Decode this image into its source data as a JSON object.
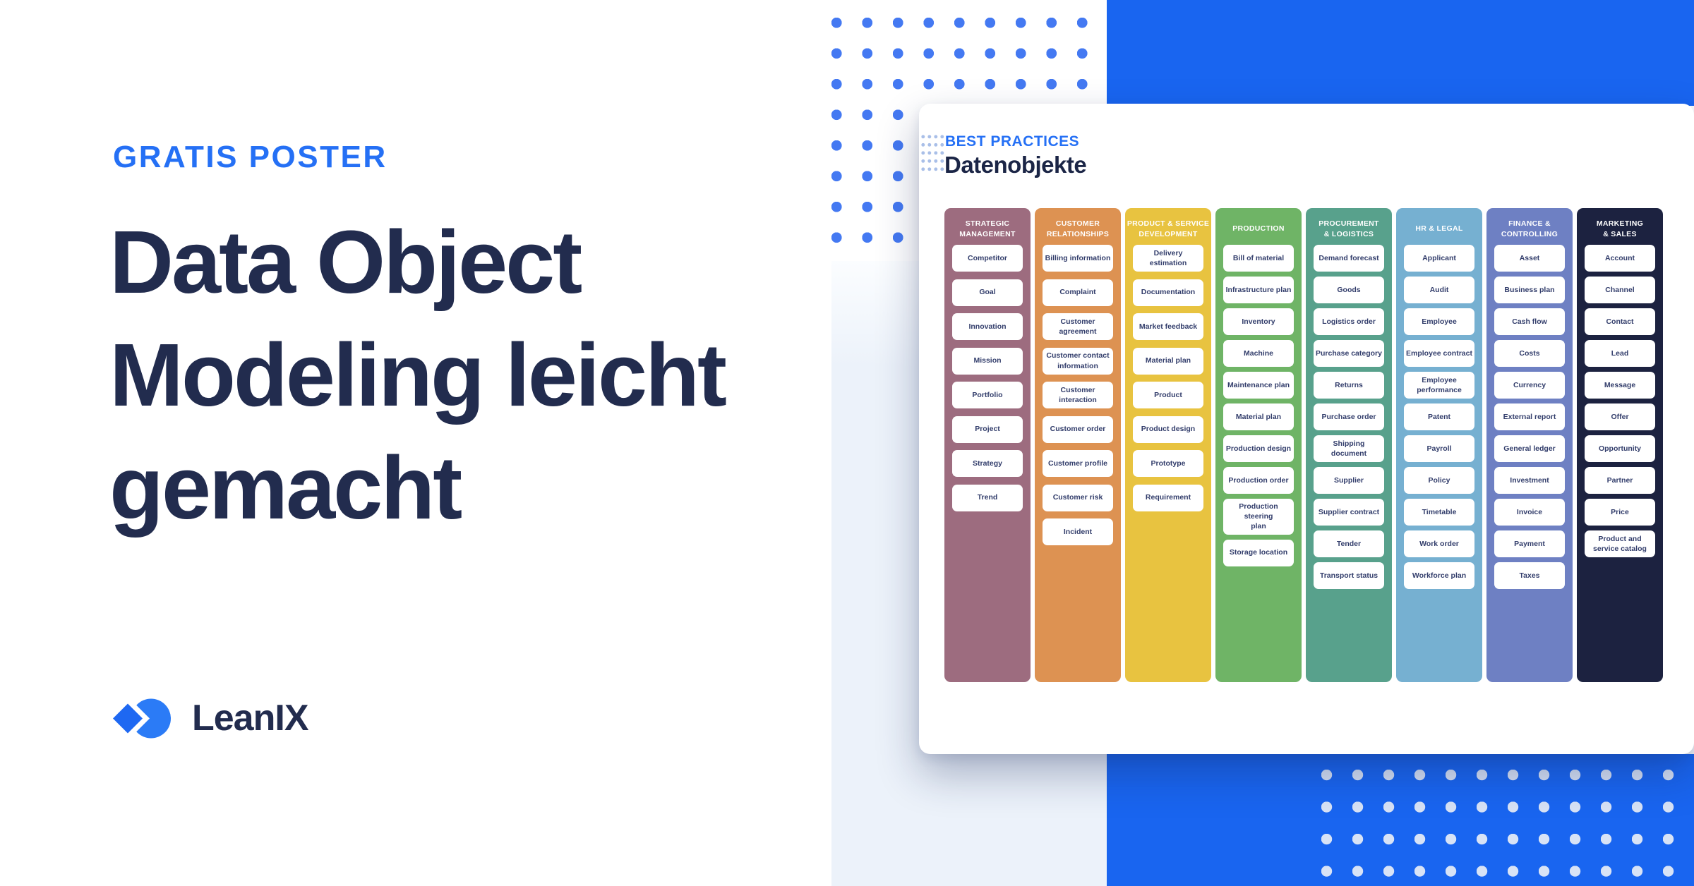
{
  "hero": {
    "eyebrow": "GRATIS POSTER",
    "headline_lines": [
      "Data Object",
      "Modeling leicht",
      "gemacht"
    ],
    "brand": "LeanIX"
  },
  "poster": {
    "eyebrow": "BEST PRACTICES",
    "title": "Datenobjekte",
    "columns": [
      {
        "title_lines": [
          "STRATEGIC",
          "MANAGEMENT"
        ],
        "color": "#9D6C7F",
        "items": [
          "Competitor",
          "Goal",
          "Innovation",
          "Mission",
          "Portfolio",
          "Project",
          "Strategy",
          "Trend"
        ]
      },
      {
        "title_lines": [
          "CUSTOMER",
          "RELATIONSHIPS"
        ],
        "color": "#DD9252",
        "items": [
          "Billing information",
          "Complaint",
          "Customer\nagreement",
          "Customer contact\ninformation",
          "Customer\ninteraction",
          "Customer order",
          "Customer profile",
          "Customer risk",
          "Incident"
        ]
      },
      {
        "title_lines": [
          "PRODUCT & SERVICE",
          "DEVELOPMENT"
        ],
        "color": "#E8C340",
        "items": [
          "Delivery estimation",
          "Documentation",
          "Market feedback",
          "Material plan",
          "Product",
          "Product design",
          "Prototype",
          "Requirement"
        ]
      },
      {
        "title_lines": [
          "PRODUCTION"
        ],
        "color": "#6FB466",
        "items": [
          "Bill of material",
          "Infrastructure plan",
          "Inventory",
          "Machine",
          "Maintenance plan",
          "Material plan",
          "Production design",
          "Production order",
          "Production steering\nplan",
          "Storage location"
        ]
      },
      {
        "title_lines": [
          "PROCUREMENT",
          "& LOGISTICS"
        ],
        "color": "#58A18C",
        "items": [
          "Demand forecast",
          "Goods",
          "Logistics order",
          "Purchase category",
          "Returns",
          "Purchase order",
          "Shipping document",
          "Supplier",
          "Supplier contract",
          "Tender",
          "Transport status"
        ]
      },
      {
        "title_lines": [
          "HR & LEGAL"
        ],
        "color": "#76B0D1",
        "items": [
          "Applicant",
          "Audit",
          "Employee",
          "Employee contract",
          "Employee\nperformance",
          "Patent",
          "Payroll",
          "Policy",
          "Timetable",
          "Work order",
          "Workforce plan"
        ]
      },
      {
        "title_lines": [
          "FINANCE &",
          "CONTROLLING"
        ],
        "color": "#6E80C3",
        "items": [
          "Asset",
          "Business plan",
          "Cash flow",
          "Costs",
          "Currency",
          "External report",
          "General ledger",
          "Investment",
          "Invoice",
          "Payment",
          "Taxes"
        ]
      },
      {
        "title_lines": [
          "MARKETING",
          "& SALES"
        ],
        "color": "#1C2240",
        "items": [
          "Account",
          "Channel",
          "Contact",
          "Lead",
          "Message",
          "Offer",
          "Opportunity",
          "Partner",
          "Price",
          "Product and\nservice catalog"
        ]
      }
    ]
  },
  "colors": {
    "accent_blue": "#2570F5",
    "headline_navy": "#222C4E",
    "block_blue": "#1965F0",
    "dot_blue": "#4479F2",
    "dot_light": "#D8E3F6",
    "panel_gray_blue": "#ECF2FA",
    "chip_text_navy": "#323D6B"
  }
}
